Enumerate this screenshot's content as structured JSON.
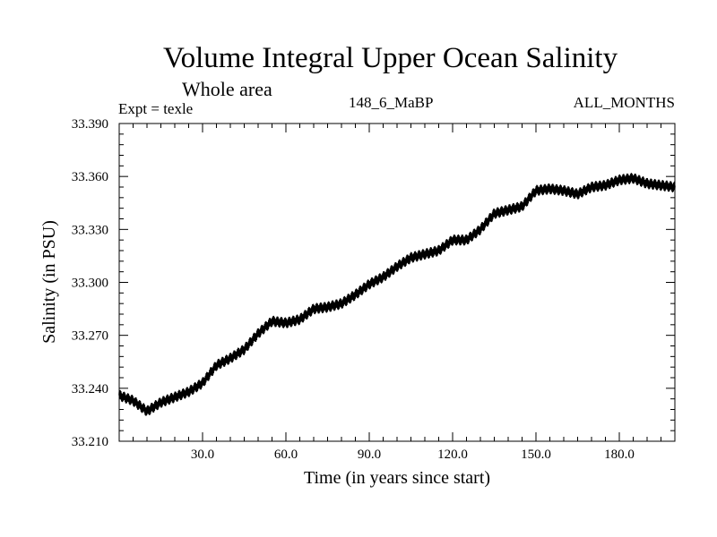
{
  "chart_data": {
    "type": "line",
    "title": "Volume Integral Upper Ocean Salinity",
    "subtitle": "Whole area",
    "experiment_label": "Expt = texle",
    "run_label": "148_6_MaBP",
    "period_label": "ALL_MONTHS",
    "xlabel": "Time (in years since start)",
    "ylabel": "Salinity (in PSU)",
    "xlim": [
      0,
      200
    ],
    "ylim": [
      33.21,
      33.39
    ],
    "xticks": [
      30,
      60,
      90,
      120,
      150,
      180
    ],
    "xtick_labels": [
      "30.0",
      "60.0",
      "90.0",
      "120.0",
      "150.0",
      "180.0"
    ],
    "yticks": [
      33.21,
      33.24,
      33.27,
      33.3,
      33.33,
      33.36,
      33.39
    ],
    "ytick_labels": [
      "33.210",
      "33.240",
      "33.270",
      "33.300",
      "33.330",
      "33.360",
      "33.390"
    ],
    "grid": false,
    "line_color": "#000000",
    "series": [
      {
        "name": "Salinity",
        "x": [
          0,
          5,
          10,
          15,
          20,
          25,
          30,
          35,
          40,
          45,
          50,
          55,
          60,
          65,
          70,
          75,
          80,
          85,
          90,
          95,
          100,
          105,
          110,
          115,
          120,
          125,
          130,
          135,
          140,
          145,
          150,
          155,
          160,
          165,
          170,
          175,
          180,
          185,
          190,
          195,
          200
        ],
        "values": [
          33.236,
          33.233,
          33.227,
          33.232,
          33.235,
          33.238,
          33.243,
          33.253,
          33.257,
          33.262,
          33.271,
          33.278,
          33.277,
          33.279,
          33.285,
          33.286,
          33.288,
          33.293,
          33.299,
          33.303,
          33.309,
          33.314,
          33.316,
          33.318,
          33.324,
          33.324,
          33.33,
          33.339,
          33.341,
          33.343,
          33.352,
          33.353,
          33.352,
          33.35,
          33.354,
          33.355,
          33.358,
          33.359,
          33.356,
          33.355,
          33.354
        ]
      }
    ]
  }
}
